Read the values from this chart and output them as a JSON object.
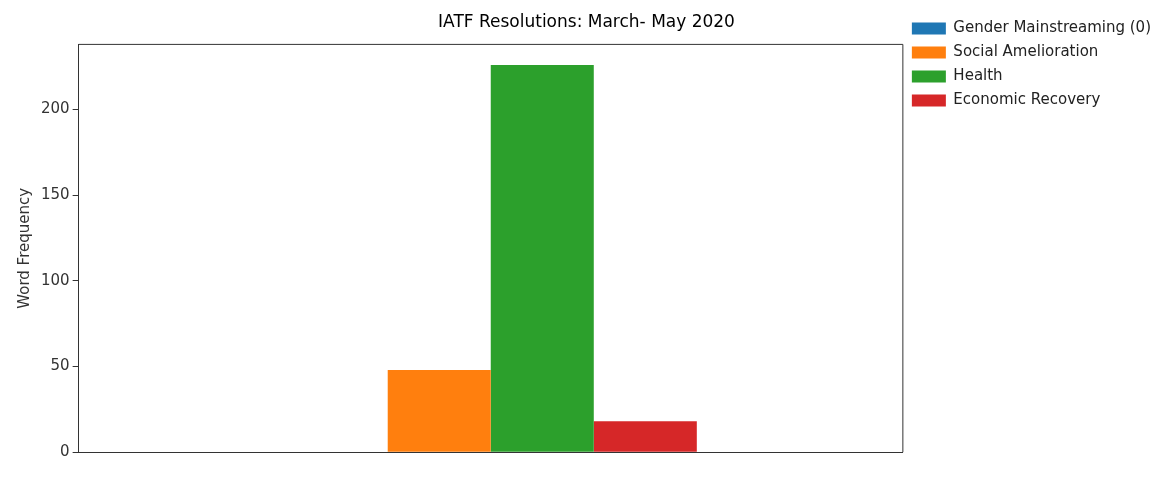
{
  "chart_data": {
    "type": "bar",
    "title": "IATF Resolutions: March- May 2020",
    "ylabel": "Word Frequency",
    "categories": [
      null
    ],
    "series": [
      {
        "name": "Gender Mainstreaming (0)",
        "color": "#1f77b4",
        "values": [
          0
        ]
      },
      {
        "name": "Social Amelioration",
        "color": "#ff7f0e",
        "values": [
          48
        ]
      },
      {
        "name": "Health",
        "color": "#2ca02c",
        "values": [
          226
        ]
      },
      {
        "name": "Economic Recovery",
        "color": "#d62728",
        "values": [
          18
        ]
      }
    ],
    "ylim": [
      0,
      238
    ],
    "yticks": [
      0,
      50,
      100,
      150,
      200
    ],
    "grid": false,
    "legend": "top right"
  }
}
